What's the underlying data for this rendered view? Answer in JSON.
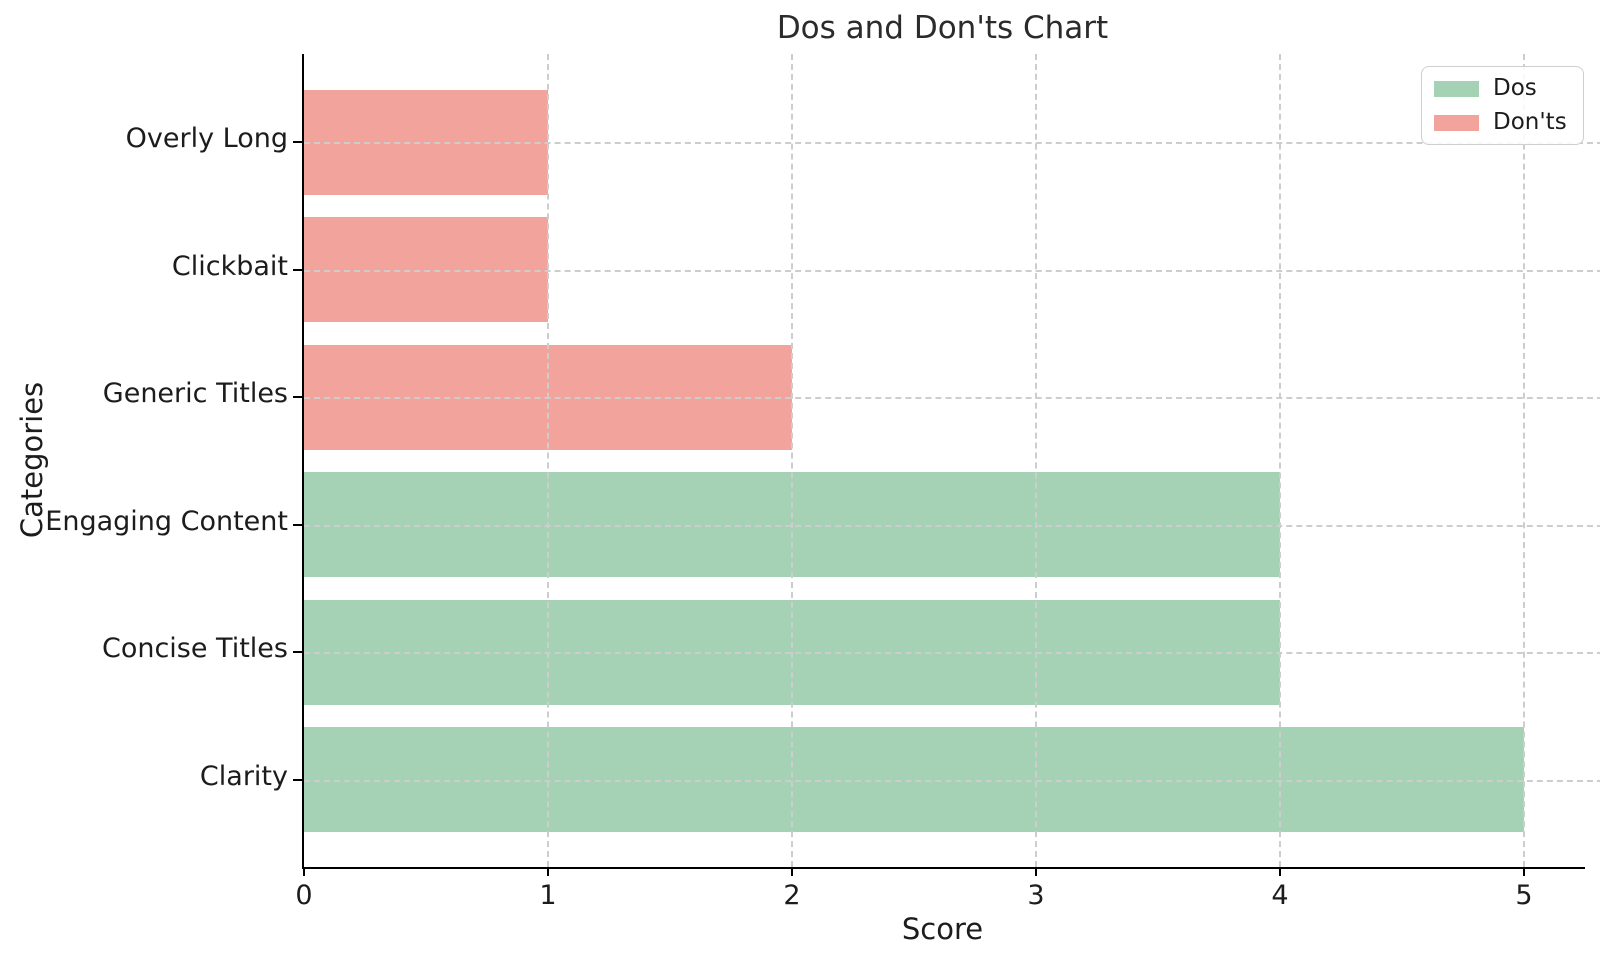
{
  "title": "Dos and Don'ts Chart",
  "chart_data": {
    "type": "bar",
    "orientation": "horizontal",
    "title": "Dos and Don'ts Chart",
    "xlabel": "Score",
    "ylabel": "Categories",
    "categories_top_to_bottom": [
      "Overly Long",
      "Clickbait",
      "Generic Titles",
      "Engaging Content",
      "Concise Titles",
      "Clarity"
    ],
    "values_top_to_bottom": [
      1,
      1,
      2,
      4,
      4,
      5
    ],
    "series_assignment_top_to_bottom": [
      "Don'ts",
      "Don'ts",
      "Don'ts",
      "Dos",
      "Dos",
      "Dos"
    ],
    "xticks": [
      0,
      1,
      2,
      3,
      4,
      5
    ],
    "xlim": [
      0,
      5.25
    ],
    "grid": "dashed-gray-above-bars",
    "grid_color": "#cdcdcd",
    "axis_color": "#000000",
    "text_color": "#1c1c1c",
    "legend": {
      "position": "upper-right",
      "entries": [
        {
          "label": "Dos",
          "color": "#a5d2b5"
        },
        {
          "label": "Don'ts",
          "color": "#f2a39c"
        }
      ]
    }
  }
}
